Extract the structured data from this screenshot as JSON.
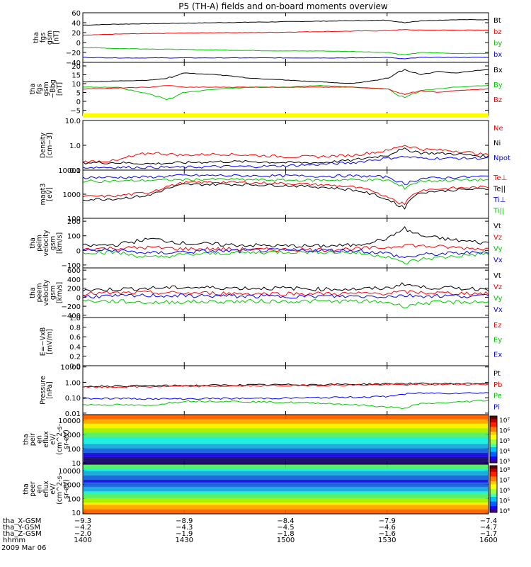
{
  "title": "P5 (TH-A) fields and on-board moments overview",
  "date": "2009 Mar 06",
  "colors": {
    "black": "#000000",
    "red": "#ff0000",
    "green": "#00c800",
    "blue": "#0000ff",
    "bar_yellow": "#ffff00"
  },
  "chart_data": [
    {
      "type": "line",
      "ylabel": [
        "tha",
        "fgs",
        "gsm",
        "[nT]"
      ],
      "yticks": [
        "60",
        "40",
        "20",
        "0",
        "−20",
        "−40"
      ],
      "ylim": [
        -40,
        60
      ],
      "x": [
        1400,
        1410,
        1420,
        1430,
        1440,
        1450,
        1500,
        1510,
        1520,
        1530,
        1535,
        1540,
        1550,
        1600
      ],
      "series": [
        {
          "name": "Bt",
          "color": "black",
          "values": [
            35,
            37,
            38,
            39,
            40,
            41,
            42,
            43,
            44,
            45,
            40,
            44,
            46,
            46
          ]
        },
        {
          "name": "bz",
          "color": "red",
          "values": [
            15,
            17,
            18,
            19,
            20,
            20,
            21,
            22,
            23,
            24,
            26,
            25,
            25,
            25
          ]
        },
        {
          "name": "by",
          "color": "green",
          "values": [
            -10,
            -12,
            -13,
            -14,
            -15,
            -16,
            -17,
            -17,
            -18,
            -20,
            -25,
            -20,
            -22,
            -22
          ]
        },
        {
          "name": "bx",
          "color": "blue",
          "values": [
            -30,
            -31,
            -31,
            -31,
            -31,
            -31,
            -31,
            -31,
            -31,
            -30,
            -33,
            -30,
            -30,
            -30
          ]
        }
      ]
    },
    {
      "type": "line",
      "ylabel": [
        "tha",
        "fgs",
        "gsm",
        "−Bbg",
        "[nT]"
      ],
      "yticks": [
        "20",
        "15",
        "10",
        "5",
        "0",
        "−5"
      ],
      "ylim": [
        -8,
        22
      ],
      "x": [
        1400,
        1410,
        1420,
        1425,
        1430,
        1440,
        1450,
        1500,
        1510,
        1520,
        1530,
        1535,
        1540,
        1545,
        1550,
        1600
      ],
      "series": [
        {
          "name": "Bx",
          "color": "black",
          "values": [
            11,
            11.5,
            12,
            13,
            16,
            15,
            13,
            12,
            11,
            10,
            13,
            18,
            15,
            17,
            16,
            18
          ]
        },
        {
          "name": "By",
          "color": "green",
          "values": [
            8,
            8,
            4,
            1,
            5,
            7,
            8,
            8,
            9,
            8,
            7,
            2,
            6,
            7,
            8,
            9
          ]
        },
        {
          "name": "Bz",
          "color": "red",
          "values": [
            7,
            7.5,
            8,
            9,
            8,
            8,
            8,
            8,
            8,
            8,
            7,
            4,
            6,
            5,
            6,
            7
          ]
        }
      ]
    },
    {
      "type": "line",
      "ylabel": [
        "Density",
        "[cm−3]"
      ],
      "yticks": [
        "10.0",
        "1.0",
        "0.1"
      ],
      "ylim": [
        0.1,
        10
      ],
      "yscale": "log",
      "x": [
        1400,
        1410,
        1420,
        1430,
        1440,
        1450,
        1500,
        1510,
        1520,
        1530,
        1535,
        1540,
        1550,
        1600
      ],
      "series": [
        {
          "name": "Ne",
          "color": "red",
          "values": [
            0.22,
            0.24,
            0.5,
            0.4,
            0.45,
            0.4,
            0.35,
            0.35,
            0.4,
            0.6,
            1.0,
            0.7,
            0.6,
            0.4
          ]
        },
        {
          "name": "Ni",
          "color": "black",
          "values": [
            0.2,
            0.2,
            0.18,
            0.2,
            0.22,
            0.22,
            0.2,
            0.2,
            0.25,
            0.4,
            0.7,
            0.5,
            0.45,
            0.35
          ]
        },
        {
          "name": "Npot",
          "color": "blue",
          "values": [
            0.13,
            0.13,
            0.13,
            0.13,
            0.14,
            0.14,
            0.15,
            0.17,
            0.2,
            0.3,
            0.35,
            0.3,
            0.3,
            0.3
          ]
        }
      ]
    },
    {
      "type": "line",
      "ylabel": [
        "magt3",
        "[eV]"
      ],
      "yticks": [
        "10000",
        "1000",
        "100"
      ],
      "ylim": [
        100,
        10000
      ],
      "yscale": "log",
      "x": [
        1400,
        1410,
        1420,
        1430,
        1440,
        1450,
        1500,
        1510,
        1520,
        1530,
        1535,
        1540,
        1550,
        1600
      ],
      "series": [
        {
          "name": "Te⊥",
          "color": "red",
          "values": [
            800,
            850,
            1200,
            3000,
            3200,
            3000,
            2800,
            2500,
            2000,
            800,
            350,
            1500,
            1800,
            2000
          ]
        },
        {
          "name": "Te||",
          "color": "black",
          "values": [
            600,
            650,
            900,
            2500,
            2600,
            2500,
            2300,
            2000,
            1500,
            600,
            250,
            1200,
            1500,
            1700
          ]
        },
        {
          "name": "Ti⊥",
          "color": "blue",
          "values": [
            5000,
            5000,
            5200,
            6000,
            6000,
            5800,
            5800,
            5600,
            5800,
            5200,
            2500,
            4500,
            5000,
            5500
          ]
        },
        {
          "name": "Ti||",
          "color": "green",
          "values": [
            3500,
            3500,
            3800,
            4000,
            4200,
            4000,
            3800,
            3800,
            4000,
            3800,
            1800,
            3500,
            3800,
            4000
          ]
        }
      ]
    },
    {
      "type": "line",
      "ylabel": [
        "tha",
        "peim",
        "velocity",
        "gsm",
        "[km/s]"
      ],
      "yticks": [
        "200",
        "100",
        "0",
        "−100"
      ],
      "ylim": [
        -120,
        220
      ],
      "x": [
        1400,
        1410,
        1420,
        1430,
        1440,
        1450,
        1500,
        1510,
        1520,
        1530,
        1535,
        1540,
        1550,
        1600
      ],
      "series": [
        {
          "name": "Vt",
          "color": "black",
          "values": [
            30,
            40,
            80,
            50,
            40,
            35,
            30,
            30,
            35,
            80,
            150,
            100,
            70,
            50
          ]
        },
        {
          "name": "Vz",
          "color": "red",
          "values": [
            10,
            15,
            20,
            10,
            10,
            5,
            5,
            5,
            10,
            20,
            40,
            30,
            20,
            10
          ]
        },
        {
          "name": "Vy",
          "color": "green",
          "values": [
            -10,
            -15,
            -50,
            -30,
            -20,
            -15,
            -10,
            -10,
            -15,
            -40,
            -90,
            -60,
            -40,
            -20
          ]
        },
        {
          "name": "Vx",
          "color": "blue",
          "values": [
            0,
            0,
            -20,
            -10,
            -5,
            0,
            0,
            0,
            0,
            -20,
            -50,
            -30,
            -20,
            -10
          ]
        }
      ]
    },
    {
      "type": "line",
      "ylabel": [
        "tha",
        "peem",
        "velocity",
        "gsm",
        "[km/s]"
      ],
      "yticks": [
        "600",
        "400",
        "200",
        "0",
        "−200",
        "−400"
      ],
      "ylim": [
        -450,
        650
      ],
      "x": [
        1400,
        1410,
        1420,
        1430,
        1440,
        1450,
        1500,
        1510,
        1520,
        1530,
        1535,
        1540,
        1550,
        1600
      ],
      "series": [
        {
          "name": "Vt",
          "color": "black",
          "values": [
            150,
            180,
            200,
            220,
            210,
            200,
            200,
            180,
            180,
            200,
            300,
            220,
            200,
            180
          ]
        },
        {
          "name": "Vz",
          "color": "red",
          "values": [
            80,
            90,
            100,
            90,
            90,
            80,
            80,
            80,
            80,
            90,
            120,
            100,
            90,
            80
          ]
        },
        {
          "name": "Vy",
          "color": "green",
          "values": [
            -80,
            -90,
            -120,
            -100,
            -100,
            -90,
            -90,
            -90,
            -90,
            -110,
            -200,
            -130,
            -110,
            -100
          ]
        },
        {
          "name": "Vx",
          "color": "blue",
          "values": [
            20,
            20,
            40,
            30,
            30,
            20,
            20,
            20,
            20,
            20,
            40,
            30,
            30,
            20
          ]
        }
      ]
    },
    {
      "type": "line",
      "ylabel": [
        "E=−VxB",
        "[mV/m]"
      ],
      "yticks": [
        "1.0",
        "0.8",
        "0.6",
        "0.4",
        "0.2",
        "0.0"
      ],
      "ylim": [
        0,
        1
      ],
      "series": [
        {
          "name": "Ez",
          "color": "red",
          "values": []
        },
        {
          "name": "Ey",
          "color": "green",
          "values": []
        },
        {
          "name": "Ex",
          "color": "blue",
          "values": []
        }
      ]
    },
    {
      "type": "line",
      "ylabel": [
        "Pressure",
        "[nPa]"
      ],
      "yticks": [
        "10.00",
        "1.00",
        "0.10",
        "0.01"
      ],
      "ylim": [
        0.008,
        12
      ],
      "yscale": "log",
      "x": [
        1400,
        1410,
        1420,
        1430,
        1440,
        1450,
        1500,
        1510,
        1520,
        1530,
        1535,
        1540,
        1550,
        1600
      ],
      "series": [
        {
          "name": "Pt",
          "color": "black",
          "values": [
            0.55,
            0.58,
            0.6,
            0.62,
            0.65,
            0.68,
            0.7,
            0.72,
            0.75,
            0.8,
            0.85,
            0.82,
            0.82,
            0.85
          ]
        },
        {
          "name": "Pb",
          "color": "red",
          "values": [
            0.48,
            0.5,
            0.52,
            0.55,
            0.57,
            0.6,
            0.62,
            0.65,
            0.67,
            0.7,
            0.7,
            0.72,
            0.74,
            0.75
          ]
        },
        {
          "name": "Pe",
          "color": "green",
          "values": [
            0.035,
            0.035,
            0.03,
            0.06,
            0.06,
            0.055,
            0.05,
            0.045,
            0.035,
            0.025,
            0.02,
            0.04,
            0.05,
            0.07
          ]
        },
        {
          "name": "Pi",
          "color": "blue",
          "values": [
            0.09,
            0.09,
            0.085,
            0.085,
            0.09,
            0.09,
            0.095,
            0.1,
            0.11,
            0.12,
            0.17,
            0.2,
            0.2,
            0.21
          ]
        }
      ]
    },
    {
      "type": "heatmap",
      "ylabel": [
        "tha",
        "peir",
        "en",
        "eflux",
        "eV/",
        "(cm^2-s-",
        "sr-eV)"
      ],
      "yticks": [
        "10000",
        "1000",
        "100",
        "10"
      ],
      "ylim": [
        8,
        25000
      ],
      "yscale": "log",
      "colorbar_labels": [
        "10⁷",
        "10⁶",
        "10⁵",
        "10⁴",
        "10³"
      ]
    },
    {
      "type": "heatmap",
      "ylabel": [
        "tha",
        "peer",
        "en",
        "eflux",
        "eV/",
        "(cm^2-s-",
        "sr-eV)"
      ],
      "yticks": [
        "10000",
        "1000",
        "100",
        "10"
      ],
      "ylim": [
        8,
        28000
      ],
      "yscale": "log",
      "colorbar_labels": [
        "10⁸",
        "10⁷",
        "10⁶",
        "10⁵",
        "10⁴"
      ]
    }
  ],
  "x_axis": {
    "row_labels": [
      "tha_X-GSM",
      "tha_Y-GSM",
      "tha_Z-GSM",
      "hhmm"
    ],
    "columns": [
      {
        "values": [
          "−9.3",
          "−4.2",
          "−2.0",
          "1400"
        ]
      },
      {
        "values": [
          "−8.9",
          "−4.3",
          "−1.9",
          "1430"
        ]
      },
      {
        "values": [
          "−8.4",
          "−4.5",
          "−1.8",
          "1500"
        ]
      },
      {
        "values": [
          "−7.9",
          "−4.6",
          "−1.6",
          "1530"
        ]
      },
      {
        "values": [
          "−7.4",
          "−4.7",
          "−1.7",
          "1600"
        ]
      }
    ]
  }
}
